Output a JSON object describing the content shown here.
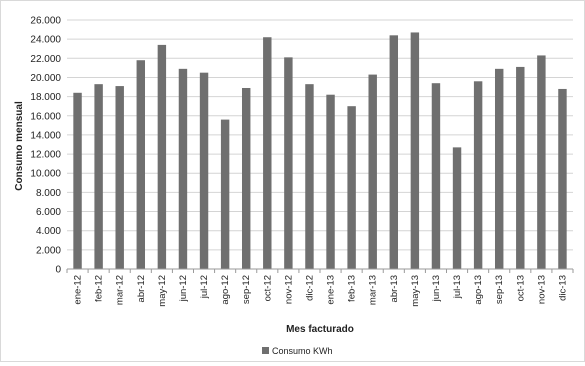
{
  "chart_data": {
    "type": "bar",
    "title": "",
    "xlabel": "Mes facturado",
    "ylabel": "Consumo mensual",
    "ylim": [
      0,
      26000
    ],
    "y_tick_step": 2000,
    "y_tick_labels": [
      "0",
      "2.000",
      "4.000",
      "6.000",
      "8.000",
      "10.000",
      "12.000",
      "14.000",
      "16.000",
      "18.000",
      "20.000",
      "22.000",
      "24.000",
      "26.000"
    ],
    "grid": true,
    "legend_position": "bottom-center",
    "bar_color": "#6f6f6f",
    "categories": [
      "ene-12",
      "feb-12",
      "mar-12",
      "abr-12",
      "may-12",
      "jun-12",
      "jul-12",
      "ago-12",
      "sep-12",
      "oct-12",
      "nov-12",
      "dic-12",
      "ene-13",
      "feb-13",
      "mar-13",
      "abr-13",
      "may-13",
      "jun-13",
      "jul-13",
      "ago-13",
      "sep-13",
      "oct-13",
      "nov-13",
      "dic-13"
    ],
    "series": [
      {
        "name": "Consumo KWh",
        "values": [
          18400,
          19300,
          19100,
          21800,
          23400,
          20900,
          20500,
          15600,
          18900,
          24200,
          22100,
          19300,
          18200,
          17000,
          20300,
          24400,
          24700,
          19400,
          12700,
          19600,
          20900,
          21100,
          22300,
          18800
        ]
      }
    ]
  }
}
